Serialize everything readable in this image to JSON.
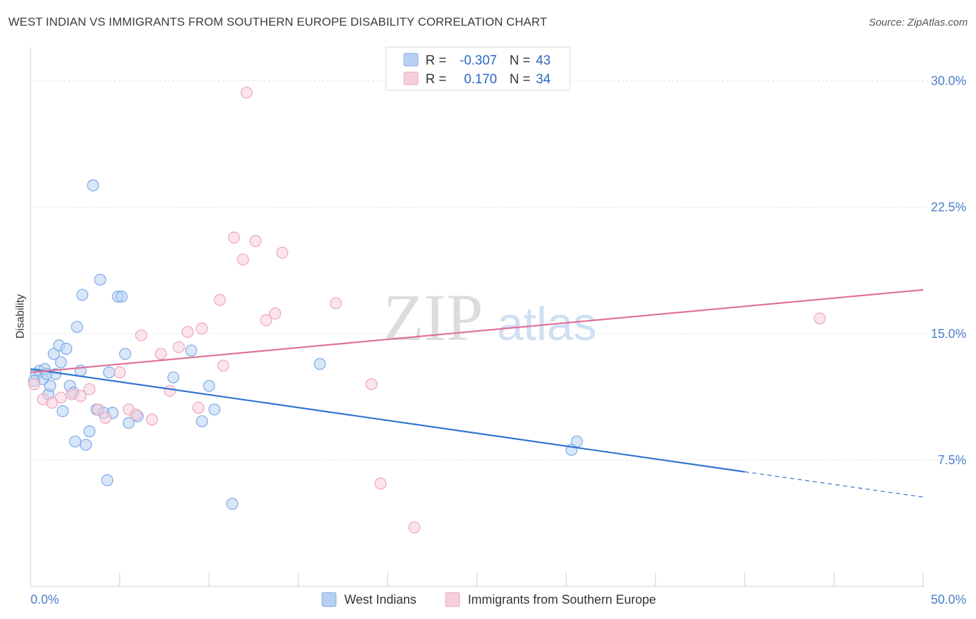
{
  "title": "WEST INDIAN VS IMMIGRANTS FROM SOUTHERN EUROPE DISABILITY CORRELATION CHART",
  "source": "Source: ZipAtlas.com",
  "watermark": {
    "zip": "ZIP",
    "atlas": "atlas"
  },
  "chart_data": {
    "type": "scatter",
    "ylabel": "Disability",
    "xlabel": "",
    "xlim": [
      0,
      50
    ],
    "ylim": [
      0,
      32
    ],
    "y_ticks": [
      {
        "value": 7.5,
        "label": "7.5%"
      },
      {
        "value": 15.0,
        "label": "15.0%"
      },
      {
        "value": 22.5,
        "label": "22.5%"
      },
      {
        "value": 30.0,
        "label": "30.0%"
      }
    ],
    "x_tick_labels": {
      "left": "0.0%",
      "right": "50.0%"
    },
    "x_minor_ticks": [
      0,
      5,
      10,
      15,
      20,
      25,
      30,
      35,
      40,
      45,
      50
    ],
    "legend_box": [
      {
        "r_label": "R =",
        "r_value": "-0.307",
        "n_label": "N =",
        "n_value": "43"
      },
      {
        "r_label": "R =",
        "r_value": "0.170",
        "n_label": "N =",
        "n_value": "34"
      }
    ],
    "series": [
      {
        "name": "West Indians",
        "color": "#7aaae6",
        "fill": "#b8d1f2",
        "line_color": "#2f74d0",
        "trend": {
          "x0": 0,
          "y0": 12.9,
          "x1": 40,
          "y1": 6.8,
          "dash_to_x": 50,
          "dash_to_y": 5.3
        },
        "points": [
          [
            0.3,
            12.6
          ],
          [
            0.5,
            12.8
          ],
          [
            0.7,
            12.3
          ],
          [
            0.8,
            12.9
          ],
          [
            0.9,
            12.6
          ],
          [
            1.0,
            11.4
          ],
          [
            1.1,
            11.9
          ],
          [
            1.3,
            13.8
          ],
          [
            1.4,
            12.6
          ],
          [
            1.6,
            14.3
          ],
          [
            1.7,
            13.3
          ],
          [
            1.8,
            10.4
          ],
          [
            2.0,
            14.1
          ],
          [
            2.2,
            11.9
          ],
          [
            2.4,
            11.5
          ],
          [
            2.5,
            8.6
          ],
          [
            2.6,
            15.4
          ],
          [
            2.8,
            12.8
          ],
          [
            2.9,
            17.3
          ],
          [
            3.1,
            8.4
          ],
          [
            3.3,
            9.2
          ],
          [
            3.5,
            23.8
          ],
          [
            3.7,
            10.5
          ],
          [
            3.9,
            18.2
          ],
          [
            4.1,
            10.3
          ],
          [
            4.3,
            6.3
          ],
          [
            4.4,
            12.7
          ],
          [
            4.6,
            10.3
          ],
          [
            4.9,
            17.2
          ],
          [
            5.1,
            17.2
          ],
          [
            5.3,
            13.8
          ],
          [
            5.5,
            9.7
          ],
          [
            6.0,
            10.1
          ],
          [
            8.0,
            12.4
          ],
          [
            9.0,
            14.0
          ],
          [
            9.6,
            9.8
          ],
          [
            10.0,
            11.9
          ],
          [
            10.3,
            10.5
          ],
          [
            11.3,
            4.9
          ],
          [
            16.2,
            13.2
          ],
          [
            30.3,
            8.1
          ],
          [
            30.6,
            8.6
          ],
          [
            0.2,
            12.2
          ]
        ]
      },
      {
        "name": "Immigrants from Southern Europe",
        "color": "#eea5bd",
        "fill": "#f7cfdc",
        "line_color": "#e07099",
        "trend": {
          "x0": 0,
          "y0": 12.7,
          "x1": 50,
          "y1": 17.6
        },
        "points": [
          [
            0.2,
            12.0
          ],
          [
            0.7,
            11.1
          ],
          [
            1.2,
            10.9
          ],
          [
            1.7,
            11.2
          ],
          [
            2.3,
            11.4
          ],
          [
            2.8,
            11.3
          ],
          [
            3.3,
            11.7
          ],
          [
            3.8,
            10.5
          ],
          [
            4.2,
            10.0
          ],
          [
            5.0,
            12.7
          ],
          [
            5.5,
            10.5
          ],
          [
            5.9,
            10.2
          ],
          [
            6.2,
            14.9
          ],
          [
            6.8,
            9.9
          ],
          [
            7.3,
            13.8
          ],
          [
            7.8,
            11.6
          ],
          [
            8.3,
            14.2
          ],
          [
            8.8,
            15.1
          ],
          [
            9.4,
            10.6
          ],
          [
            9.6,
            15.3
          ],
          [
            10.6,
            17.0
          ],
          [
            10.8,
            13.1
          ],
          [
            11.4,
            20.7
          ],
          [
            11.9,
            19.4
          ],
          [
            12.1,
            29.3
          ],
          [
            12.6,
            20.5
          ],
          [
            13.2,
            15.8
          ],
          [
            13.7,
            16.2
          ],
          [
            14.1,
            19.8
          ],
          [
            17.1,
            16.8
          ],
          [
            19.1,
            12.0
          ],
          [
            19.6,
            6.1
          ],
          [
            21.5,
            3.5
          ],
          [
            44.2,
            15.9
          ]
        ]
      }
    ]
  }
}
